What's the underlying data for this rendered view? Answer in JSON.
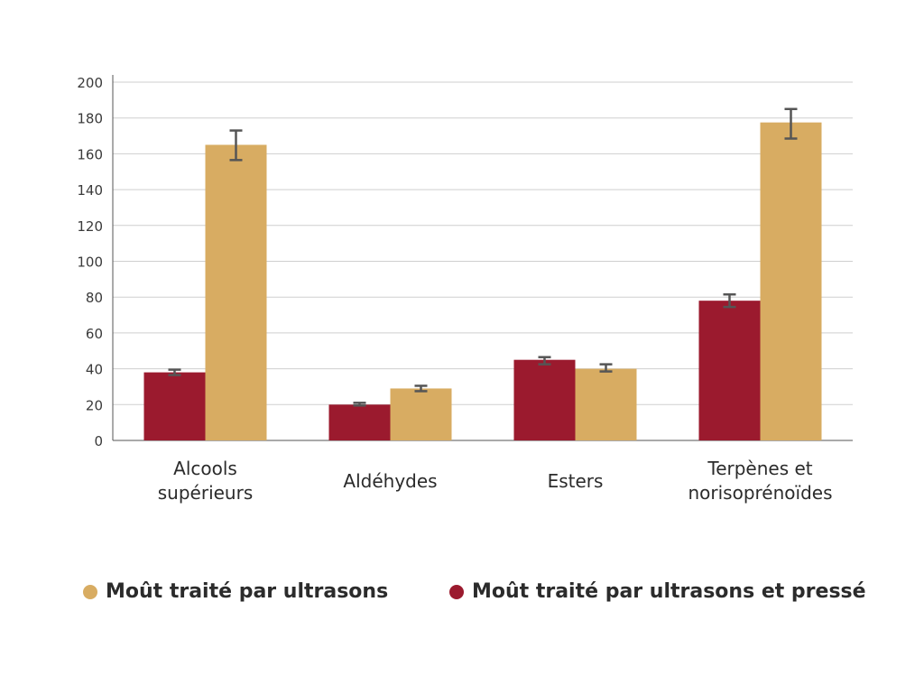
{
  "chart_data": {
    "type": "bar",
    "categories": [
      [
        "Alcools",
        "supérieurs"
      ],
      [
        "Aldéhydes"
      ],
      [
        "Esters"
      ],
      [
        "Terpènes et",
        "norisoprénoïdes"
      ]
    ],
    "series": [
      {
        "name": "Moût traité par ultrasons et pressé",
        "color": "#9b1a2e",
        "values": [
          38,
          20,
          45,
          78
        ],
        "error_low": [
          36.5,
          19.5,
          42.5,
          74.5
        ],
        "error_high": [
          39.5,
          21,
          46.5,
          81.5
        ]
      },
      {
        "name": "Moût traité par ultrasons",
        "color": "#d8ac62",
        "values": [
          165,
          29,
          40,
          177.5
        ],
        "error_low": [
          156.5,
          27.5,
          38.5,
          168.5
        ],
        "error_high": [
          173,
          30.5,
          42.5,
          185
        ]
      }
    ],
    "ylim": [
      0,
      200
    ],
    "yticks": [
      0,
      20,
      40,
      60,
      80,
      100,
      120,
      140,
      160,
      180,
      200
    ],
    "grid": true,
    "legend_placement": "bottom"
  },
  "legend": [
    {
      "label": "Moût traité par ultrasons",
      "color": "#d8ac62"
    },
    {
      "label": "Moût traité par ultrasons et pressé",
      "color": "#9b1a2e"
    }
  ]
}
